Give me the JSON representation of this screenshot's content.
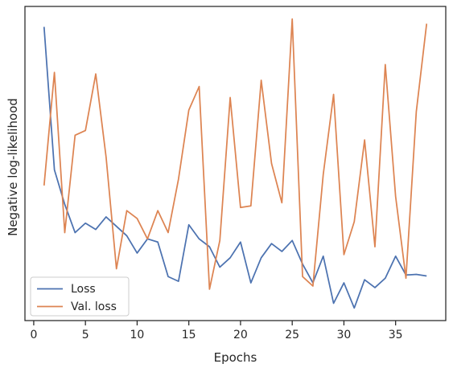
{
  "chart_data": {
    "type": "line",
    "title": "",
    "xlabel": "Epochs",
    "ylabel": "Negative log-likelihood",
    "xlim": [
      -0.85,
      39.85
    ],
    "ylim": [
      0,
      1
    ],
    "x_ticks": [
      0,
      5,
      10,
      15,
      20,
      25,
      30,
      35
    ],
    "y_ticks_visible": false,
    "grid": false,
    "legend_position": "lower-left",
    "x": [
      1,
      2,
      3,
      4,
      5,
      6,
      7,
      8,
      9,
      10,
      11,
      12,
      13,
      14,
      15,
      16,
      17,
      18,
      19,
      20,
      21,
      22,
      23,
      24,
      25,
      26,
      27,
      28,
      29,
      30,
      31,
      32,
      33,
      34,
      35,
      36,
      37,
      38
    ],
    "series": [
      {
        "name": "Loss",
        "color": "#4c72b0",
        "values": [
          0.935,
          0.48,
          0.37,
          0.28,
          0.31,
          0.29,
          0.33,
          0.3,
          0.27,
          0.215,
          0.26,
          0.25,
          0.14,
          0.125,
          0.305,
          0.26,
          0.235,
          0.17,
          0.2,
          0.25,
          0.12,
          0.2,
          0.245,
          0.22,
          0.255,
          0.18,
          0.12,
          0.205,
          0.055,
          0.12,
          0.04,
          0.13,
          0.105,
          0.135,
          0.205,
          0.145,
          0.147,
          0.142
        ]
      },
      {
        "name": "Val. loss",
        "color": "#dd8452",
        "values": [
          0.43,
          0.79,
          0.28,
          0.59,
          0.605,
          0.785,
          0.52,
          0.165,
          0.35,
          0.325,
          0.26,
          0.35,
          0.28,
          0.45,
          0.67,
          0.745,
          0.1,
          0.255,
          0.71,
          0.36,
          0.365,
          0.765,
          0.5,
          0.375,
          0.96,
          0.14,
          0.11,
          0.465,
          0.72,
          0.21,
          0.315,
          0.575,
          0.235,
          0.815,
          0.395,
          0.135,
          0.665,
          0.945
        ]
      }
    ]
  }
}
